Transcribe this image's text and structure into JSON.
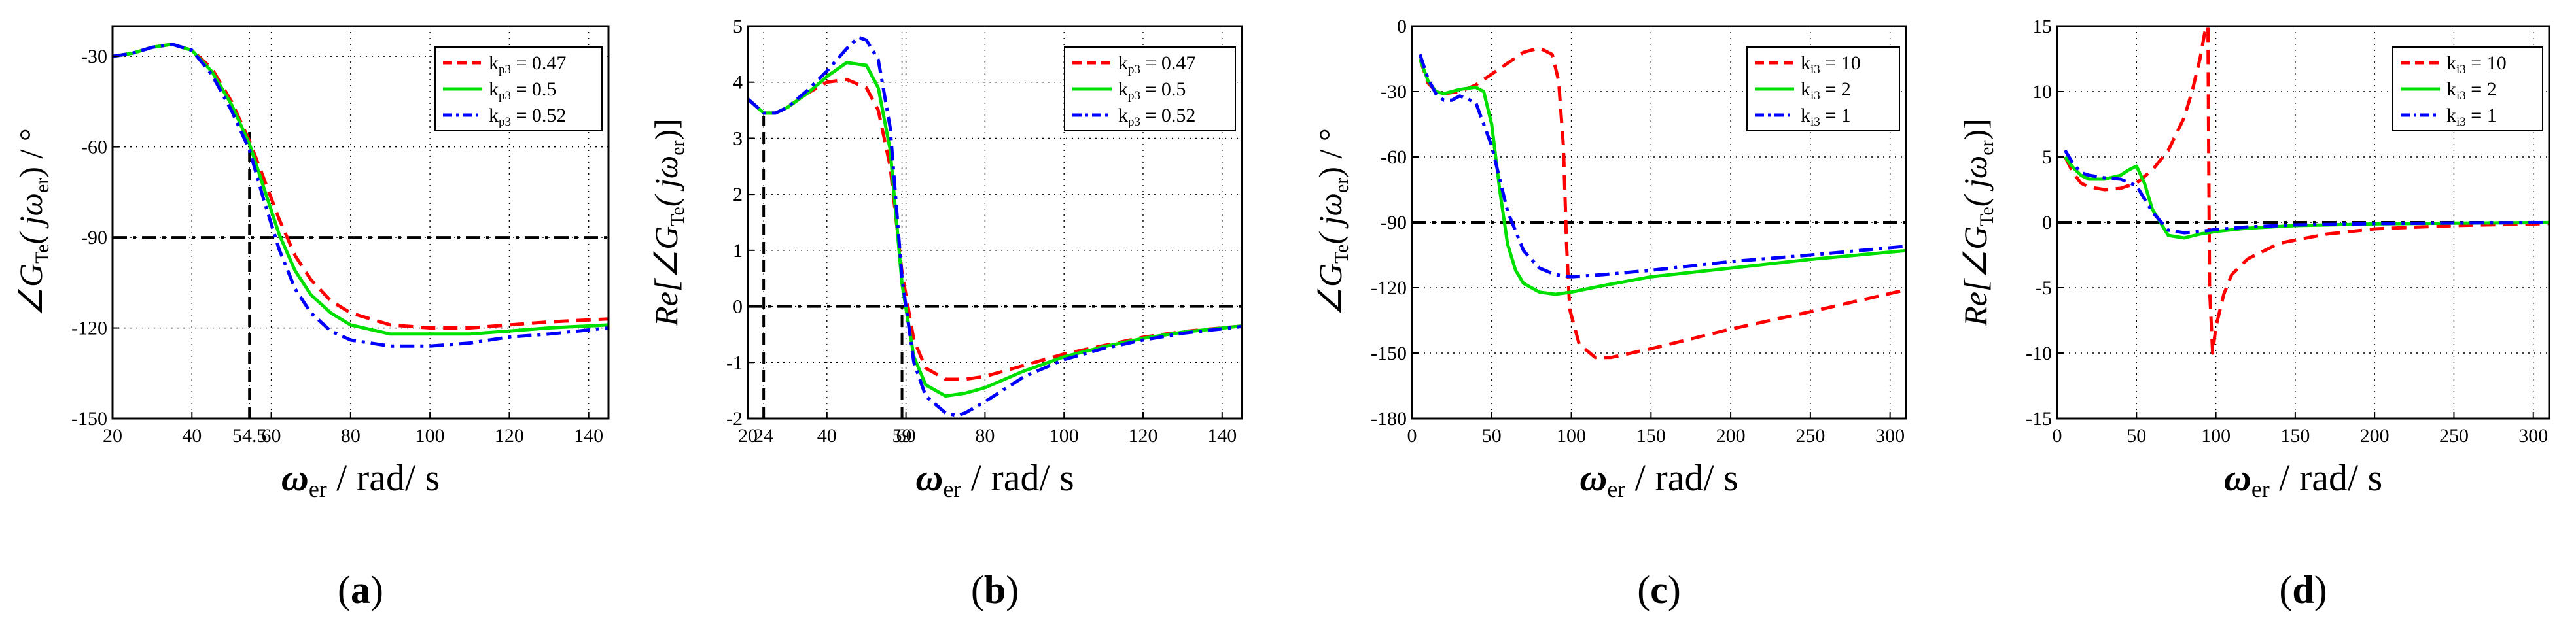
{
  "chart_data": [
    {
      "type": "line",
      "panel_label": "(a)",
      "ylabel_parts": {
        "main": "∠G",
        "sub1": "Te",
        "paren": "( jω",
        "sub2": "er",
        "close": ") / °"
      },
      "xlabel_parts": {
        "omega": "ω",
        "sub": "er",
        "rest": " / rad/ s"
      },
      "xlim": [
        20,
        145
      ],
      "ylim": [
        -150,
        -20
      ],
      "xticks": [
        20,
        40,
        54.5,
        60,
        80,
        100,
        120,
        140
      ],
      "xtick_labels": [
        "20",
        "40",
        "54.5",
        "60",
        "80",
        "100",
        "120",
        "140"
      ],
      "yticks": [
        -150,
        -120,
        -90,
        -60,
        -30
      ],
      "ytick_labels": [
        "-150",
        "-120",
        "-90",
        "-60",
        "-30"
      ],
      "grid": true,
      "legend_position": "top-right",
      "hlines": [
        {
          "y": -90,
          "style": "dashdot"
        }
      ],
      "vlines": [
        {
          "x": 54.5,
          "y_from": -150,
          "y_to": -55,
          "style": "dashed"
        }
      ],
      "series": [
        {
          "name": "k",
          "name_sub": "p3",
          "name_suffix": " = 0.47",
          "color": "#ff0000",
          "dash": "dashed",
          "x": [
            20,
            25,
            30,
            35,
            40,
            45,
            50,
            54.5,
            58,
            62,
            66,
            70,
            75,
            80,
            90,
            100,
            110,
            120,
            130,
            145
          ],
          "y": [
            -30,
            -29,
            -27,
            -26,
            -28,
            -34,
            -45,
            -58,
            -70,
            -84,
            -96,
            -104,
            -111,
            -115,
            -119,
            -120,
            -120,
            -119,
            -118,
            -117
          ]
        },
        {
          "name": "k",
          "name_sub": "p3",
          "name_suffix": " = 0.5",
          "color": "#00e000",
          "dash": "solid",
          "x": [
            20,
            25,
            30,
            35,
            40,
            45,
            50,
            54.5,
            58,
            62,
            66,
            70,
            75,
            80,
            90,
            100,
            110,
            120,
            130,
            145
          ],
          "y": [
            -30,
            -29,
            -27,
            -26,
            -28,
            -35,
            -46,
            -59,
            -73,
            -89,
            -101,
            -109,
            -115,
            -119,
            -122,
            -122,
            -122,
            -121,
            -120,
            -119
          ]
        },
        {
          "name": "k",
          "name_sub": "p3",
          "name_suffix": " = 0.52",
          "color": "#0000ff",
          "dash": "dashdot",
          "x": [
            20,
            25,
            30,
            35,
            40,
            45,
            50,
            54.5,
            58,
            62,
            66,
            70,
            75,
            80,
            90,
            100,
            110,
            120,
            130,
            145
          ],
          "y": [
            -30,
            -29,
            -27,
            -26,
            -28,
            -36,
            -48,
            -61,
            -77,
            -94,
            -107,
            -115,
            -121,
            -124,
            -126,
            -126,
            -125,
            -123,
            -122,
            -120
          ]
        }
      ]
    },
    {
      "type": "line",
      "panel_label": "(b)",
      "ylabel_parts": {
        "main": "Re[∠G",
        "sub1": "Te",
        "paren": "( jω",
        "sub2": "er",
        "close": ")]"
      },
      "xlabel_parts": {
        "omega": "ω",
        "sub": "er",
        "rest": " / rad/ s"
      },
      "xlim": [
        20,
        145
      ],
      "ylim": [
        -2,
        5
      ],
      "xticks": [
        20,
        24,
        40,
        59,
        60,
        80,
        100,
        120,
        140
      ],
      "xtick_labels": [
        "20",
        "24",
        "40",
        "59",
        "60",
        "80",
        "100",
        "120",
        "140"
      ],
      "yticks": [
        -2,
        -1,
        0,
        1,
        2,
        3,
        4,
        5
      ],
      "ytick_labels": [
        "-2",
        "-1",
        "0",
        "1",
        "2",
        "3",
        "4",
        "5"
      ],
      "grid": true,
      "legend_position": "top-right",
      "hlines": [
        {
          "y": 0,
          "style": "dashdot"
        }
      ],
      "vlines": [
        {
          "x": 24,
          "y_from": -2,
          "y_to": 3.4,
          "style": "dashed"
        },
        {
          "x": 59,
          "y_from": -2,
          "y_to": 0,
          "style": "dashed"
        }
      ],
      "series": [
        {
          "name": "k",
          "name_sub": "p3",
          "name_suffix": " = 0.47",
          "color": "#ff0000",
          "dash": "dashed",
          "x": [
            20,
            24,
            27,
            30,
            35,
            40,
            45,
            50,
            53,
            56,
            59,
            62,
            65,
            70,
            75,
            80,
            90,
            100,
            110,
            120,
            130,
            145
          ],
          "y": [
            3.7,
            3.45,
            3.45,
            3.55,
            3.8,
            4.0,
            4.05,
            3.9,
            3.5,
            2.5,
            0.6,
            -0.6,
            -1.1,
            -1.3,
            -1.3,
            -1.25,
            -1.05,
            -0.85,
            -0.7,
            -0.55,
            -0.45,
            -0.35
          ]
        },
        {
          "name": "k",
          "name_sub": "p3",
          "name_suffix": " = 0.5",
          "color": "#00e000",
          "dash": "solid",
          "x": [
            20,
            24,
            27,
            30,
            35,
            40,
            45,
            50,
            53,
            56,
            59,
            62,
            65,
            70,
            75,
            80,
            90,
            100,
            110,
            120,
            130,
            145
          ],
          "y": [
            3.7,
            3.45,
            3.45,
            3.55,
            3.8,
            4.1,
            4.35,
            4.3,
            3.9,
            2.8,
            0.4,
            -0.9,
            -1.4,
            -1.6,
            -1.55,
            -1.45,
            -1.15,
            -0.9,
            -0.72,
            -0.57,
            -0.46,
            -0.35
          ]
        },
        {
          "name": "k",
          "name_sub": "p3",
          "name_suffix": " = 0.52",
          "color": "#0000ff",
          "dash": "dashdot",
          "x": [
            20,
            24,
            27,
            30,
            35,
            40,
            45,
            48,
            50,
            53,
            56,
            59,
            62,
            65,
            70,
            73,
            75,
            80,
            90,
            100,
            110,
            120,
            130,
            145
          ],
          "y": [
            3.7,
            3.45,
            3.45,
            3.55,
            3.85,
            4.2,
            4.6,
            4.8,
            4.75,
            4.4,
            3.2,
            0.5,
            -1.0,
            -1.6,
            -1.9,
            -1.95,
            -1.9,
            -1.7,
            -1.25,
            -0.95,
            -0.75,
            -0.6,
            -0.48,
            -0.36
          ]
        }
      ]
    },
    {
      "type": "line",
      "panel_label": "(c)",
      "ylabel_parts": {
        "main": "∠G",
        "sub1": "Te",
        "paren": "( jω",
        "sub2": "er",
        "close": ") / °"
      },
      "xlabel_parts": {
        "omega": "ω",
        "sub": "er",
        "rest": " / rad/ s"
      },
      "xlim": [
        0,
        310
      ],
      "ylim": [
        -180,
        0
      ],
      "xticks": [
        0,
        50,
        100,
        150,
        200,
        250,
        300
      ],
      "xtick_labels": [
        "0",
        "50",
        "100",
        "150",
        "200",
        "250",
        "300"
      ],
      "yticks": [
        -180,
        -150,
        -120,
        -90,
        -60,
        -30,
        0
      ],
      "ytick_labels": [
        "-180",
        "-150",
        "-120",
        "-90",
        "-60",
        "-30",
        "0"
      ],
      "grid": true,
      "legend_position": "top-right",
      "hlines": [
        {
          "y": -90,
          "style": "dashdot"
        }
      ],
      "vlines": [],
      "series": [
        {
          "name": "k",
          "name_sub": "i3",
          "name_suffix": " = 10",
          "color": "#ff0000",
          "dash": "dashed",
          "x": [
            5,
            10,
            15,
            20,
            30,
            40,
            50,
            60,
            70,
            80,
            88,
            92,
            95,
            97,
            99,
            105,
            115,
            125,
            150,
            200,
            250,
            310
          ],
          "y": [
            -15,
            -26,
            -30,
            -31,
            -30,
            -27,
            -22,
            -17,
            -12,
            -10,
            -13,
            -25,
            -55,
            -100,
            -130,
            -146,
            -152,
            -152,
            -148,
            -139,
            -131,
            -121
          ]
        },
        {
          "name": "k",
          "name_sub": "i3",
          "name_suffix": " = 2",
          "color": "#00e000",
          "dash": "solid",
          "x": [
            5,
            10,
            15,
            20,
            30,
            40,
            45,
            50,
            55,
            60,
            65,
            70,
            80,
            90,
            100,
            120,
            150,
            200,
            250,
            310
          ],
          "y": [
            -15,
            -25,
            -30,
            -31,
            -29,
            -28,
            -30,
            -45,
            -75,
            -100,
            -112,
            -118,
            -122,
            -123,
            -122,
            -119,
            -115,
            -111,
            -107,
            -103
          ]
        },
        {
          "name": "k",
          "name_sub": "i3",
          "name_suffix": " = 1",
          "color": "#0000ff",
          "dash": "dashdot",
          "x": [
            5,
            10,
            15,
            20,
            25,
            30,
            40,
            50,
            60,
            70,
            80,
            90,
            100,
            120,
            150,
            200,
            250,
            310
          ],
          "y": [
            -13,
            -24,
            -31,
            -34,
            -34,
            -32,
            -35,
            -55,
            -85,
            -103,
            -111,
            -114,
            -115,
            -114,
            -112,
            -108,
            -105,
            -101
          ]
        }
      ]
    },
    {
      "type": "line",
      "panel_label": "(d)",
      "ylabel_parts": {
        "main": "Re[∠G",
        "sub1": "Te",
        "paren": "( jω",
        "sub2": "er",
        "close": ")]"
      },
      "xlabel_parts": {
        "omega": "ω",
        "sub": "er",
        "rest": " / rad/ s"
      },
      "xlim": [
        0,
        310
      ],
      "ylim": [
        -15,
        15
      ],
      "xticks": [
        0,
        50,
        100,
        150,
        200,
        250,
        300
      ],
      "xtick_labels": [
        "0",
        "50",
        "100",
        "150",
        "200",
        "250",
        "300"
      ],
      "yticks": [
        -15,
        -10,
        -5,
        0,
        5,
        10,
        15
      ],
      "ytick_labels": [
        "-15",
        "-10",
        "-5",
        "0",
        "5",
        "10",
        "15"
      ],
      "grid": true,
      "legend_position": "top-right",
      "hlines": [
        {
          "y": 0,
          "style": "dashdot"
        }
      ],
      "vlines": [],
      "series": [
        {
          "name": "k",
          "name_sub": "i3",
          "name_suffix": " = 10",
          "color": "#ff0000",
          "dash": "dashed",
          "x": [
            5,
            10,
            15,
            20,
            30,
            40,
            50,
            60,
            70,
            80,
            85,
            90,
            93,
            95,
            96,
            98,
            100,
            105,
            110,
            120,
            140,
            170,
            200,
            250,
            310
          ],
          "y": [
            5,
            3.8,
            3,
            2.7,
            2.5,
            2.6,
            3,
            4,
            5.5,
            8,
            10,
            12.5,
            14.5,
            15,
            -5,
            -10,
            -8,
            -5.5,
            -4,
            -2.8,
            -1.6,
            -0.9,
            -0.5,
            -0.25,
            -0.1
          ]
        },
        {
          "name": "k",
          "name_sub": "i3",
          "name_suffix": " = 2",
          "color": "#00e000",
          "dash": "solid",
          "x": [
            5,
            10,
            15,
            20,
            30,
            40,
            45,
            50,
            55,
            60,
            70,
            80,
            90,
            100,
            120,
            150,
            200,
            250,
            310
          ],
          "y": [
            5,
            4.2,
            3.6,
            3.3,
            3.3,
            3.6,
            4,
            4.3,
            3,
            1,
            -1,
            -1.2,
            -0.9,
            -0.7,
            -0.45,
            -0.25,
            -0.12,
            -0.06,
            -0.02
          ]
        },
        {
          "name": "k",
          "name_sub": "i3",
          "name_suffix": " = 1",
          "color": "#0000ff",
          "dash": "dashdot",
          "x": [
            5,
            10,
            15,
            20,
            30,
            40,
            50,
            60,
            70,
            80,
            90,
            100,
            120,
            150,
            200,
            250,
            310
          ],
          "y": [
            5.5,
            4.5,
            3.8,
            3.6,
            3.4,
            3.3,
            2.8,
            0.8,
            -0.6,
            -0.8,
            -0.7,
            -0.55,
            -0.35,
            -0.2,
            -0.1,
            -0.05,
            -0.02
          ]
        }
      ]
    }
  ]
}
